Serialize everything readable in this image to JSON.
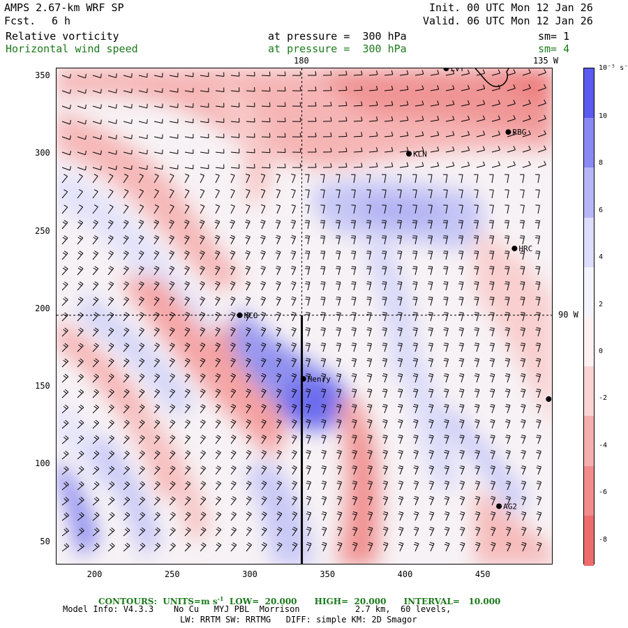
{
  "header": {
    "model": "AMPS 2.67-km WRF SP",
    "fcst_label": "Fcst.",
    "fcst_value": "6 h",
    "init": "Init. 00 UTC Mon 12 Jan 26",
    "valid": "Valid. 06 UTC Mon 12 Jan 26",
    "field1": {
      "name": "Relative vorticity",
      "level": "at pressure =  300 hPa",
      "sm": "sm= 1"
    },
    "field2": {
      "name": "Horizontal wind speed",
      "level": "at pressure =  300 hPa",
      "sm": "sm= 4"
    }
  },
  "map": {
    "xlim": [
      175,
      495
    ],
    "ylim": [
      35,
      355
    ],
    "xticks": [
      "200",
      "250",
      "300",
      "350",
      "400",
      "450"
    ],
    "yticks": [
      "50",
      "100",
      "150",
      "200",
      "250",
      "300",
      "350"
    ],
    "lon_labels": {
      "top_180": "180",
      "top_135w": "135 W",
      "right_90w": "90 W"
    },
    "meridian_180_x": 333,
    "parallel_y": 196,
    "cross_section": {
      "x": 333,
      "y_from": 35,
      "y_to": 196
    },
    "stations": [
      {
        "name": "LVT",
        "x": 426,
        "y": 355
      },
      {
        "name": "RBG",
        "x": 466,
        "y": 314
      },
      {
        "name": "KLN",
        "x": 402,
        "y": 300
      },
      {
        "name": "HRC",
        "x": 470,
        "y": 239
      },
      {
        "name": "NCO",
        "x": 293,
        "y": 196
      },
      {
        "name": "Henry",
        "x": 334,
        "y": 155
      },
      {
        "name": "AG2",
        "x": 460,
        "y": 73
      },
      {
        "name": "",
        "x": 492,
        "y": 142
      }
    ]
  },
  "colorbar": {
    "unit": "10⁻⁵ s⁻¹",
    "labels": [
      "10",
      "8",
      "6",
      "4",
      "2",
      "0",
      "-2",
      "-4",
      "-6",
      "-8"
    ],
    "colors_top_to_bottom": [
      "#5b5bf0",
      "#8a8af2",
      "#b6b6f6",
      "#dcdcfb",
      "#f4f4fe",
      "#fff1f1",
      "#fbd3d3",
      "#f6aeae",
      "#f28b8b",
      "#ef6c6c"
    ]
  },
  "footer": {
    "contours": "CONTOURS:  UNITS=m s",
    "contours_sup": "-1",
    "low": "LOW=  20.000",
    "high": "HIGH=  20.000",
    "interval": "INTERVAL=   10.000",
    "model_info": "Model Info: V4.3.3    No Cu   MYJ PBL  Morrison           2.7 km,  60 levels,",
    "physics": "LW: RRTM SW: RRTMG   DIFF: simple KM: 2D Smagor"
  }
}
